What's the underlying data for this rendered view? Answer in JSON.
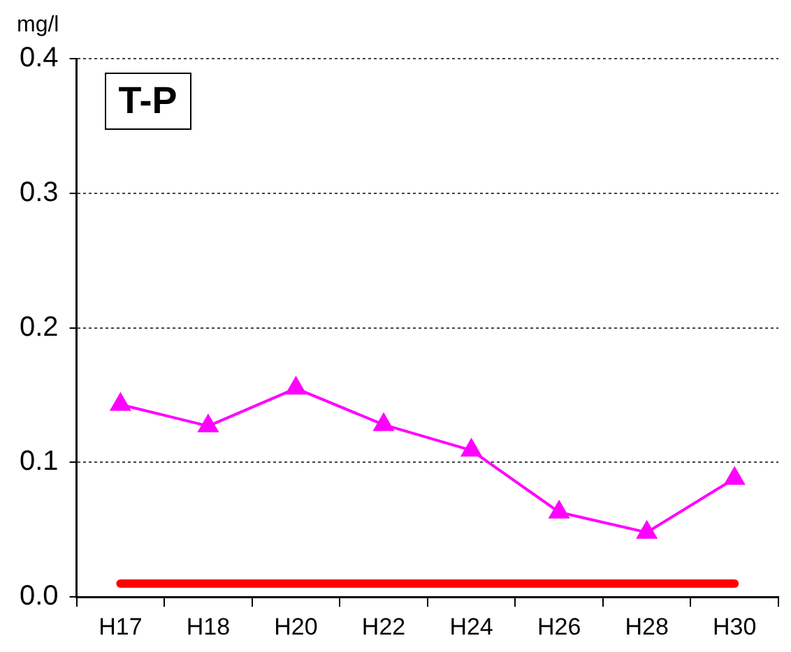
{
  "chart_data": {
    "type": "line",
    "title": "T-P",
    "ylabel": "mg/l",
    "categories": [
      "H17",
      "H18",
      "H20",
      "H22",
      "H24",
      "H26",
      "H28",
      "H30"
    ],
    "series": [
      {
        "color": "#ff00ff",
        "marker": "triangle",
        "values": [
          0.143,
          0.127,
          0.155,
          0.128,
          0.109,
          0.063,
          0.048,
          0.088
        ]
      },
      {
        "color": "#ff0000",
        "marker": "none",
        "values": [
          0.01,
          0.01,
          0.01,
          0.01,
          0.01,
          0.01,
          0.01,
          0.01
        ]
      }
    ],
    "ylim": [
      0,
      0.4
    ],
    "yticks": [
      {
        "value": 0,
        "label": "0.0"
      },
      0.1,
      0.2,
      0.3,
      0.4
    ],
    "grid": "y"
  }
}
